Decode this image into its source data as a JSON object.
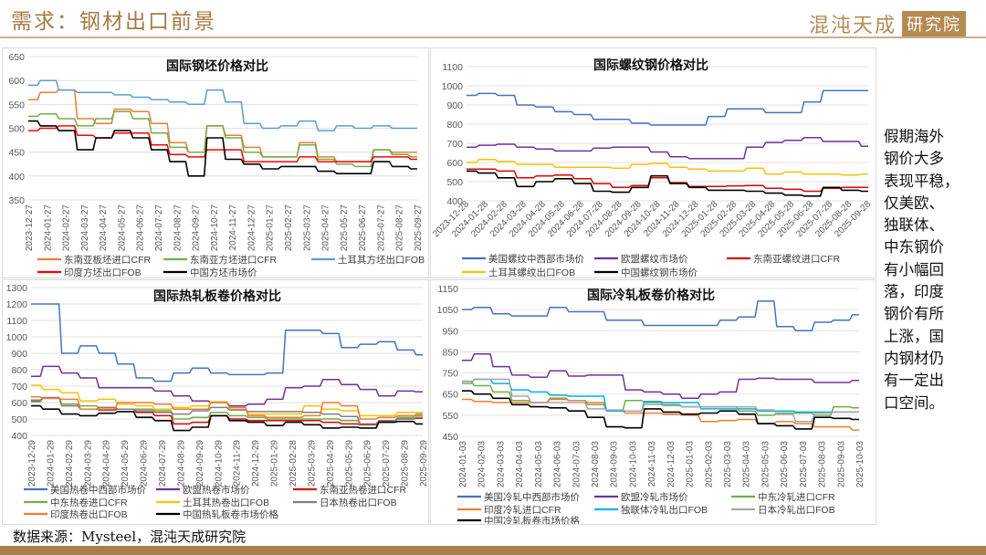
{
  "header": {
    "title": "需求：钢材出口前景",
    "logo_main": "混沌天成",
    "logo_box": "研究院"
  },
  "side_text": [
    "假期海外",
    "钢价大多",
    "表现平稳，",
    "仅美欧、",
    "独联体、",
    "中东钢价",
    "有小幅回",
    "落，印度",
    "钢价有所",
    "上涨，国",
    "内钢材仍",
    "有一定出",
    "口空间。"
  ],
  "footer": {
    "source": "数据来源：Mysteel，混沌天成研究院"
  },
  "chart_data": [
    {
      "type": "line",
      "title": "国际钢坯价格对比",
      "ylim": [
        350,
        650
      ],
      "ystep": 50,
      "x": [
        "2023-12-27",
        "2024-01-27",
        "2024-02-27",
        "2024-03-27",
        "2024-04-27",
        "2024-05-27",
        "2024-06-27",
        "2024-07-27",
        "2024-08-27",
        "2024-09-27",
        "2024-10-27",
        "2024-11-27",
        "2024-12-27",
        "2025-01-27",
        "2025-02-27",
        "2025-03-27",
        "2025-04-27",
        "2025-05-27",
        "2025-06-27",
        "2025-07-27",
        "2025-08-27",
        "2025-09-27"
      ],
      "series": [
        {
          "name": "东南亚板坯进口CFR",
          "color": "#ed7d31",
          "values": [
            560,
            575,
            580,
            520,
            510,
            540,
            535,
            510,
            470,
            450,
            505,
            485,
            460,
            440,
            440,
            470,
            440,
            430,
            430,
            455,
            450,
            450
          ]
        },
        {
          "name": "东南亚方坯进口CFR",
          "color": "#70ad47",
          "values": [
            525,
            530,
            520,
            505,
            520,
            535,
            520,
            490,
            460,
            450,
            505,
            480,
            450,
            440,
            440,
            465,
            435,
            425,
            420,
            455,
            445,
            440
          ]
        },
        {
          "name": "土耳其方坯出口FOB",
          "color": "#5b9bd5",
          "values": [
            590,
            600,
            580,
            575,
            575,
            570,
            565,
            560,
            555,
            550,
            580,
            555,
            510,
            500,
            505,
            515,
            495,
            505,
            500,
            505,
            500,
            500
          ]
        },
        {
          "name": "印度方坯出口FOB",
          "color": "#ff0000",
          "values": [
            495,
            500,
            505,
            485,
            480,
            490,
            490,
            465,
            445,
            440,
            455,
            455,
            430,
            430,
            430,
            440,
            430,
            430,
            430,
            440,
            440,
            435
          ]
        },
        {
          "name": "中国方坯市场价",
          "color": "#000000",
          "values": [
            515,
            505,
            495,
            455,
            480,
            495,
            480,
            455,
            430,
            400,
            480,
            435,
            425,
            415,
            420,
            420,
            410,
            405,
            405,
            430,
            420,
            415
          ]
        }
      ]
    },
    {
      "type": "line",
      "title": "国际螺纹钢价格对比",
      "ylim": [
        400,
        1100
      ],
      "ystep": 100,
      "x": [
        "2023-12-28",
        "2024-01-28",
        "2024-02-28",
        "2024-03-28",
        "2024-04-28",
        "2024-05-28",
        "2024-06-28",
        "2024-07-28",
        "2024-08-28",
        "2024-09-28",
        "2024-10-28",
        "2024-11-28",
        "2024-12-28",
        "2025-01-28",
        "2025-02-28",
        "2025-03-28",
        "2025-04-28",
        "2025-05-28",
        "2025-06-28",
        "2025-07-28",
        "2025-08-28",
        "2025-09-28"
      ],
      "series": [
        {
          "name": "美国螺纹中西部市场价",
          "color": "#4472c4",
          "values": [
            950,
            960,
            950,
            900,
            890,
            865,
            850,
            825,
            825,
            805,
            795,
            795,
            795,
            840,
            880,
            880,
            860,
            860,
            915,
            975,
            975,
            975
          ]
        },
        {
          "name": "欧盟螺纹市场价",
          "color": "#7030a0",
          "values": [
            680,
            690,
            695,
            680,
            670,
            660,
            660,
            675,
            680,
            680,
            655,
            630,
            620,
            620,
            620,
            680,
            705,
            715,
            730,
            710,
            710,
            685
          ]
        },
        {
          "name": "东南亚螺纹进口CFR",
          "color": "#e00000",
          "values": [
            565,
            565,
            555,
            520,
            530,
            535,
            515,
            490,
            470,
            480,
            520,
            495,
            475,
            475,
            478,
            480,
            465,
            460,
            450,
            465,
            470,
            470
          ]
        },
        {
          "name": "土耳其螺纹出口FOB",
          "color": "#ffc000",
          "values": [
            600,
            615,
            605,
            590,
            590,
            575,
            575,
            575,
            570,
            590,
            595,
            575,
            565,
            555,
            555,
            570,
            540,
            550,
            540,
            540,
            535,
            540
          ]
        },
        {
          "name": "中国螺纹钢市场价",
          "color": "#000000",
          "values": [
            555,
            545,
            520,
            475,
            500,
            515,
            490,
            450,
            445,
            470,
            530,
            490,
            470,
            455,
            455,
            450,
            440,
            430,
            425,
            470,
            455,
            450
          ]
        }
      ]
    },
    {
      "type": "line",
      "title": "国际热轧板卷价格对比",
      "ylim": [
        400,
        1300
      ],
      "ystep": 100,
      "x": [
        "2023-12-29",
        "2024-01-29",
        "2024-02-29",
        "2024-03-29",
        "2024-04-29",
        "2024-05-29",
        "2024-06-29",
        "2024-07-29",
        "2024-08-29",
        "2024-09-29",
        "2024-10-29",
        "2024-11-29",
        "2024-12-29",
        "2025-01-29",
        "2025-02-28",
        "2025-03-29",
        "2025-04-29",
        "2025-05-29",
        "2025-06-29",
        "2025-07-29",
        "2025-08-29",
        "2025-09-29"
      ],
      "series": [
        {
          "name": "美国热卷中西部市场价",
          "color": "#4472c4",
          "values": [
            1200,
            1200,
            900,
            945,
            900,
            835,
            750,
            730,
            780,
            810,
            780,
            770,
            770,
            780,
            1040,
            1040,
            1020,
            935,
            955,
            970,
            920,
            890
          ]
        },
        {
          "name": "欧盟热卷市场价",
          "color": "#7030a0",
          "values": [
            760,
            820,
            780,
            750,
            690,
            690,
            690,
            670,
            640,
            610,
            600,
            580,
            590,
            620,
            690,
            700,
            740,
            710,
            680,
            640,
            670,
            665
          ]
        },
        {
          "name": "东南亚热卷进口CFR",
          "color": "#e00000",
          "values": [
            610,
            630,
            590,
            560,
            555,
            560,
            540,
            520,
            470,
            480,
            520,
            500,
            490,
            490,
            490,
            490,
            480,
            470,
            465,
            485,
            500,
            505
          ]
        },
        {
          "name": "中东热卷进口CFR",
          "color": "#70ad47",
          "values": [
            605,
            630,
            590,
            580,
            570,
            560,
            560,
            550,
            500,
            510,
            540,
            520,
            510,
            500,
            500,
            500,
            500,
            490,
            470,
            480,
            510,
            530
          ]
        },
        {
          "name": "土耳其热卷出口FOB",
          "color": "#ffc000",
          "values": [
            705,
            680,
            660,
            610,
            620,
            590,
            580,
            560,
            570,
            580,
            605,
            560,
            530,
            530,
            530,
            580,
            560,
            550,
            520,
            520,
            540,
            540
          ]
        },
        {
          "name": "日本热卷出口FOB",
          "color": "#7f7f7f",
          "values": [
            615,
            630,
            580,
            560,
            570,
            560,
            550,
            540,
            530,
            550,
            570,
            555,
            545,
            545,
            545,
            540,
            530,
            515,
            470,
            490,
            500,
            510
          ]
        },
        {
          "name": "印度热卷出口FOB",
          "color": "#ed7d31",
          "values": [
            635,
            625,
            620,
            560,
            560,
            600,
            600,
            590,
            560,
            560,
            600,
            570,
            520,
            510,
            510,
            520,
            600,
            580,
            500,
            510,
            520,
            520
          ]
        },
        {
          "name": "中国热轧板卷市场价格",
          "color": "#000000",
          "values": [
            580,
            560,
            530,
            520,
            535,
            545,
            510,
            490,
            430,
            450,
            520,
            490,
            480,
            460,
            480,
            465,
            445,
            450,
            445,
            480,
            485,
            470
          ]
        }
      ]
    },
    {
      "type": "line",
      "title": "国际冷轧板卷价格对比",
      "ylim": [
        450,
        1150
      ],
      "ystep": 100,
      "x": [
        "2024-01-03",
        "2024-02-03",
        "2024-03-03",
        "2024-04-03",
        "2024-05-03",
        "2024-06-03",
        "2024-07-03",
        "2024-08-03",
        "2024-09-03",
        "2024-10-03",
        "2024-11-03",
        "2024-12-03",
        "2025-01-03",
        "2025-02-03",
        "2025-03-03",
        "2025-04-03",
        "2025-05-03",
        "2025-06-03",
        "2025-07-03",
        "2025-08-03",
        "2025-09-03",
        "2025-10-03"
      ],
      "series": [
        {
          "name": "美国冷轧中西部市场价",
          "color": "#4472c4",
          "values": [
            1050,
            1060,
            1030,
            1020,
            1020,
            1060,
            1040,
            1040,
            1000,
            1000,
            975,
            975,
            975,
            975,
            1000,
            1015,
            1090,
            970,
            950,
            990,
            1000,
            1025
          ]
        },
        {
          "name": "欧盟冷轧市场价",
          "color": "#7030a0",
          "values": [
            810,
            840,
            780,
            740,
            730,
            760,
            735,
            740,
            740,
            670,
            660,
            650,
            630,
            650,
            660,
            720,
            725,
            720,
            720,
            705,
            705,
            715
          ]
        },
        {
          "name": "中东冷轧进口CFR",
          "color": "#70ad47",
          "values": [
            710,
            690,
            660,
            620,
            610,
            630,
            620,
            600,
            570,
            620,
            610,
            600,
            590,
            590,
            590,
            570,
            550,
            560,
            560,
            550,
            590,
            585
          ]
        },
        {
          "name": "印度冷轧进口CFR",
          "color": "#ed7d31",
          "values": [
            625,
            615,
            610,
            610,
            610,
            625,
            620,
            610,
            570,
            560,
            560,
            555,
            550,
            520,
            525,
            530,
            510,
            520,
            510,
            495,
            495,
            480
          ]
        },
        {
          "name": "独联体冷轧出口FOB",
          "color": "#00b0f0",
          "values": [
            700,
            720,
            700,
            670,
            660,
            645,
            640,
            640,
            570,
            570,
            615,
            610,
            610,
            580,
            580,
            580,
            570,
            570,
            565,
            565,
            565,
            565
          ]
        },
        {
          "name": "日本冷轧出口FOB",
          "color": "#a5a5a5",
          "values": [
            700,
            720,
            720,
            640,
            610,
            610,
            610,
            580,
            575,
            570,
            600,
            595,
            590,
            590,
            590,
            590,
            575,
            555,
            520,
            560,
            565,
            565
          ]
        },
        {
          "name": "中国冷轧板卷市场价格",
          "color": "#000000",
          "values": [
            665,
            650,
            630,
            600,
            590,
            585,
            570,
            540,
            495,
            490,
            580,
            565,
            555,
            560,
            570,
            555,
            510,
            500,
            485,
            540,
            535,
            530
          ]
        }
      ]
    }
  ]
}
